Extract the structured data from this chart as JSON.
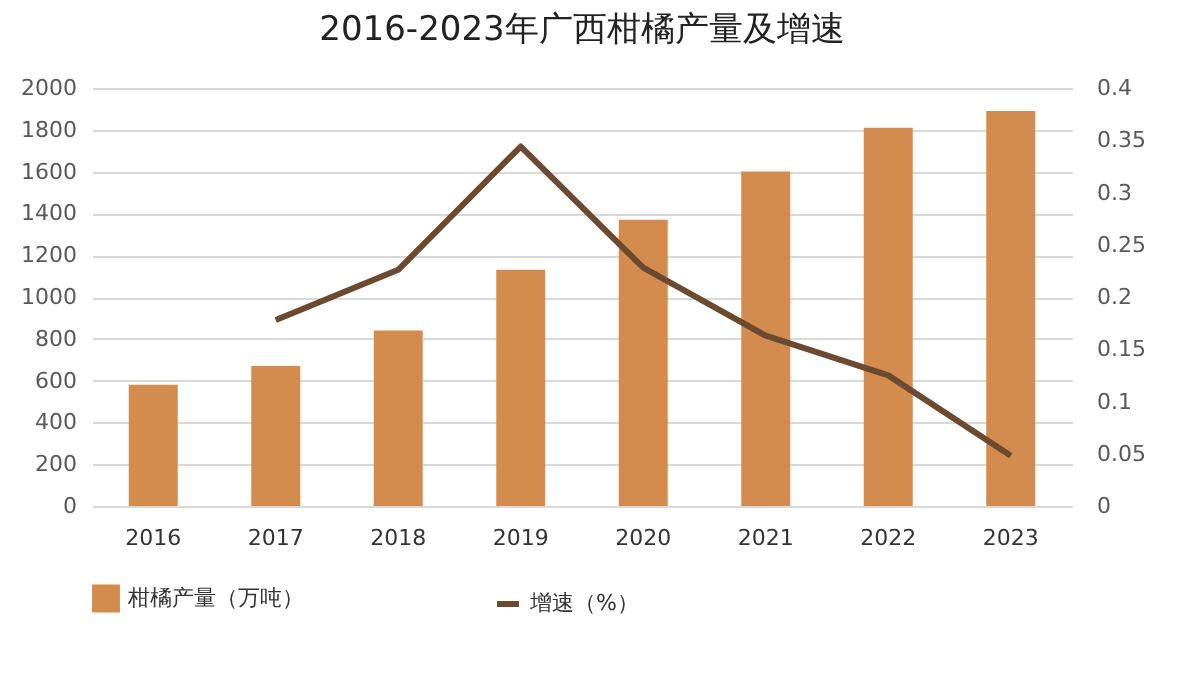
{
  "chart_data": {
    "type": "bar",
    "title": "2016-2023年广西柑橘产量及增速",
    "categories": [
      "2016",
      "2017",
      "2018",
      "2019",
      "2020",
      "2021",
      "2022",
      "2023"
    ],
    "series": [
      {
        "name": "柑橘产量（万吨）",
        "color": "#d48c4e",
        "values": [
          580,
          670,
          840,
          1130,
          1370,
          1600,
          1810,
          1890
        ]
      },
      {
        "name": "增速（%）",
        "type": "line",
        "axis": "y2",
        "color": "#6b4a2f",
        "values": [
          null,
          0.178,
          0.226,
          0.344,
          0.228,
          0.163,
          0.125,
          0.048
        ]
      }
    ],
    "ylim": [
      0,
      2000
    ],
    "yticks": [
      0,
      200,
      400,
      600,
      800,
      1000,
      1200,
      1400,
      1600,
      1800,
      2000
    ],
    "y2lim": [
      0,
      0.4
    ],
    "y2ticks": [
      0,
      0.05,
      0.1,
      0.15,
      0.2,
      0.25,
      0.3,
      0.35,
      0.4
    ],
    "grid": "y",
    "legend": "bottom",
    "marker": "none",
    "line_style": "solid"
  }
}
